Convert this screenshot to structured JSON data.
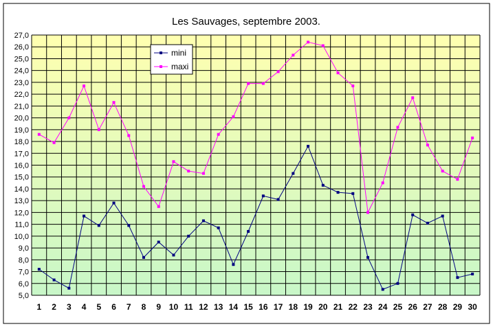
{
  "chart_data": {
    "type": "line",
    "title": "Les Sauvages, septembre 2003.",
    "xlabel": "",
    "ylabel": "",
    "x": [
      "1",
      "2",
      "3",
      "4",
      "5",
      "6",
      "7",
      "8",
      "9",
      "10",
      "11",
      "12",
      "13",
      "14",
      "15",
      "16",
      "17",
      "18",
      "19",
      "20",
      "21",
      "22",
      "23",
      "24",
      "25",
      "26",
      "27",
      "28",
      "29",
      "30"
    ],
    "y_ticks": [
      "5,0",
      "6,0",
      "7,0",
      "8,0",
      "9,0",
      "10,0",
      "11,0",
      "12,0",
      "13,0",
      "14,0",
      "15,0",
      "16,0",
      "17,0",
      "18,0",
      "19,0",
      "20,0",
      "21,0",
      "22,0",
      "23,0",
      "24,0",
      "25,0",
      "26,0",
      "27,0"
    ],
    "ylim": [
      5,
      27
    ],
    "grid": true,
    "legend_position": "top-left",
    "series": [
      {
        "name": "mini",
        "color": "#000080",
        "marker": "square",
        "values": [
          7.2,
          6.3,
          5.6,
          11.7,
          10.9,
          12.8,
          10.9,
          8.2,
          9.5,
          8.4,
          10.0,
          11.3,
          10.7,
          7.6,
          10.4,
          13.4,
          13.1,
          15.3,
          17.6,
          14.3,
          13.7,
          13.6,
          8.2,
          5.5,
          6.0,
          11.8,
          11.1,
          11.7,
          6.5,
          6.8
        ]
      },
      {
        "name": "maxi",
        "color": "#ff00ff",
        "marker": "square",
        "values": [
          18.6,
          17.9,
          20.0,
          22.7,
          19.0,
          21.3,
          18.5,
          14.2,
          12.5,
          16.3,
          15.5,
          15.3,
          18.6,
          20.1,
          22.9,
          22.9,
          23.9,
          25.3,
          26.4,
          26.1,
          23.8,
          22.7,
          12.0,
          14.5,
          19.2,
          21.7,
          17.7,
          15.5,
          14.8,
          18.3
        ]
      }
    ],
    "colors": {
      "plot_gradient_top": "#ffffb0",
      "plot_gradient_bottom": "#c8f7c8",
      "grid": "#000000",
      "frame_border": "#000000"
    }
  }
}
